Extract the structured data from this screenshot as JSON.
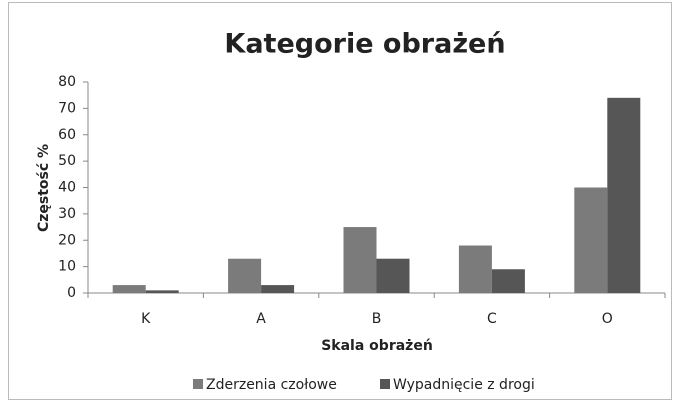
{
  "chart_data": {
    "type": "bar",
    "title": "Kategorie obrażeń",
    "x_label": "Skala obrażeń",
    "y_label": "Częstość %",
    "categories": [
      "K",
      "A",
      "B",
      "C",
      "O"
    ],
    "series": [
      {
        "name": "Zderzenia czołowe",
        "color": "#7b7b7b",
        "values": [
          3,
          13,
          25,
          18,
          40
        ]
      },
      {
        "name": "Wypadnięcie z drogi",
        "color": "#565656",
        "values": [
          1,
          3,
          13,
          9,
          74
        ]
      }
    ],
    "ylim": [
      0,
      80
    ],
    "yticks": [
      0,
      10,
      20,
      30,
      40,
      50,
      60,
      70,
      80
    ],
    "grid": false,
    "legend": "bottom"
  }
}
